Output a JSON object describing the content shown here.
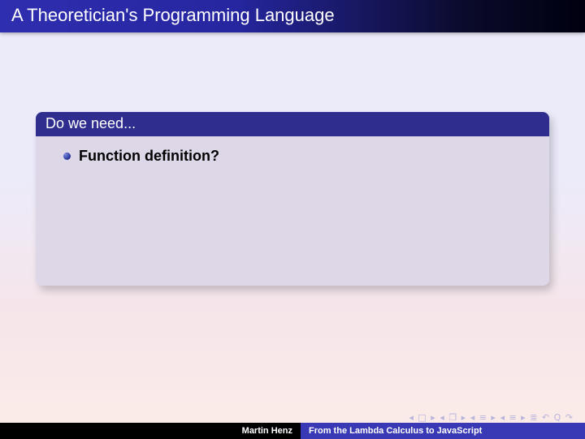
{
  "title": "A Theoretician's Programming Language",
  "block": {
    "title": "Do we need...",
    "items": [
      {
        "text": "Function definition?"
      }
    ]
  },
  "nav": {
    "symbols": "◂ □ ▸  ◂ ❐ ▸  ◂ ≡ ▸  ◂ ≡ ▸   ≣   ↶ Q ↷"
  },
  "footer": {
    "author": "Martin Henz",
    "talk": "From the Lambda Calculus to JavaScript"
  },
  "colors": {
    "title_bar_start": "#2e2eb0",
    "title_bar_end": "#000010",
    "block_title_bg": "#2f2e8f",
    "block_body_bg": "#ded7e8",
    "footer_right_bg": "#3939b5",
    "nav_color": "#b7b4dc"
  },
  "fonts": {
    "title_size_pt": 16,
    "block_title_size_pt": 13,
    "item_size_pt": 13,
    "footer_size_pt": 8
  }
}
